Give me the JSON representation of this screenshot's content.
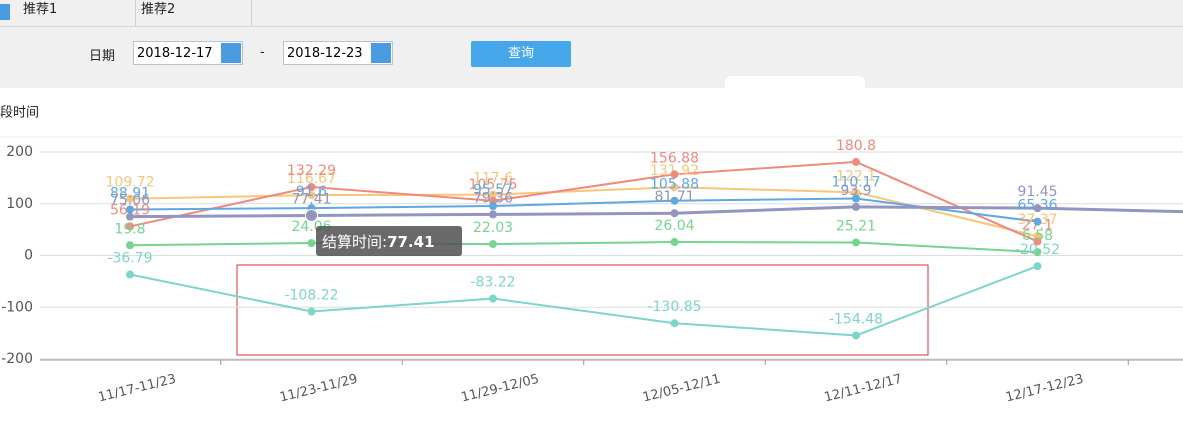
{
  "tabs": [
    "推荐1",
    "推荐2"
  ],
  "filter": {
    "date_label": "日期",
    "start": "2018-12-17",
    "separator": "-",
    "end": "2018-12-23",
    "button": "查询"
  },
  "chart_data": {
    "type": "line",
    "title": "段时间",
    "categories": [
      "11/17-11/23",
      "11/23-11/29",
      "11/29-12/05",
      "12/05-12/11",
      "12/11-12/17",
      "12/17-12/23",
      null
    ],
    "ylim": [
      -200,
      200
    ],
    "yticks": [
      -200,
      -100,
      0,
      100,
      200
    ],
    "grid": true,
    "series": [
      {
        "name": null,
        "color": "#f7c67b",
        "values": [
          109.72,
          116.67,
          117.6,
          131.92,
          122.1,
          37.37,
          null
        ]
      },
      {
        "name": null,
        "color": "#ef8a7e",
        "values": [
          56.19,
          132.29,
          105.75,
          156.88,
          180.8,
          27.1,
          null
        ]
      },
      {
        "name": null,
        "color": "#5fa8e0",
        "values": [
          88.91,
          91.6,
          95.57,
          105.88,
          110.17,
          65.36,
          null
        ]
      },
      {
        "name": null,
        "color": "#9295bf",
        "values": [
          75.06,
          77.41,
          79.36,
          81.71,
          93.9,
          91.45,
          83
        ]
      },
      {
        "name": null,
        "color": "#77d48f",
        "values": [
          19.8,
          24.06,
          22.03,
          26.04,
          25.21,
          6.58,
          null
        ]
      },
      {
        "name": null,
        "color": "#7fd4cc",
        "values": [
          -36.79,
          -108.22,
          -83.22,
          -130.85,
          -154.48,
          -20.52,
          null
        ]
      }
    ],
    "tooltip": {
      "label": "结算时间:",
      "series": 3,
      "index": 1
    }
  }
}
